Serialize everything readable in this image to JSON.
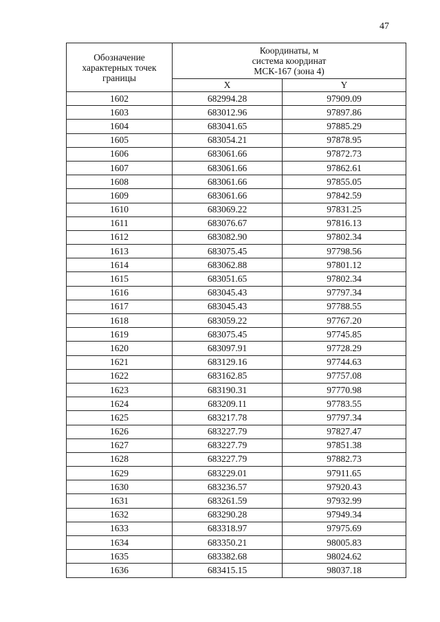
{
  "page_number": "47",
  "table": {
    "header": {
      "point_label": "Обозначение характерных точек границы",
      "coords_label_line1": "Координаты, м",
      "coords_label_line2": "система координат",
      "coords_label_line3": "МСК-167 (зона 4)",
      "x_label": "X",
      "y_label": "Y"
    },
    "rows": [
      [
        "1602",
        "682994.28",
        "97909.09"
      ],
      [
        "1603",
        "683012.96",
        "97897.86"
      ],
      [
        "1604",
        "683041.65",
        "97885.29"
      ],
      [
        "1605",
        "683054.21",
        "97878.95"
      ],
      [
        "1606",
        "683061.66",
        "97872.73"
      ],
      [
        "1607",
        "683061.66",
        "97862.61"
      ],
      [
        "1608",
        "683061.66",
        "97855.05"
      ],
      [
        "1609",
        "683061.66",
        "97842.59"
      ],
      [
        "1610",
        "683069.22",
        "97831.25"
      ],
      [
        "1611",
        "683076.67",
        "97816.13"
      ],
      [
        "1612",
        "683082.90",
        "97802.34"
      ],
      [
        "1613",
        "683075.45",
        "97798.56"
      ],
      [
        "1614",
        "683062.88",
        "97801.12"
      ],
      [
        "1615",
        "683051.65",
        "97802.34"
      ],
      [
        "1616",
        "683045.43",
        "97797.34"
      ],
      [
        "1617",
        "683045.43",
        "97788.55"
      ],
      [
        "1618",
        "683059.22",
        "97767.20"
      ],
      [
        "1619",
        "683075.45",
        "97745.85"
      ],
      [
        "1620",
        "683097.91",
        "97728.29"
      ],
      [
        "1621",
        "683129.16",
        "97744.63"
      ],
      [
        "1622",
        "683162.85",
        "97757.08"
      ],
      [
        "1623",
        "683190.31",
        "97770.98"
      ],
      [
        "1624",
        "683209.11",
        "97783.55"
      ],
      [
        "1625",
        "683217.78",
        "97797.34"
      ],
      [
        "1626",
        "683227.79",
        "97827.47"
      ],
      [
        "1627",
        "683227.79",
        "97851.38"
      ],
      [
        "1628",
        "683227.79",
        "97882.73"
      ],
      [
        "1629",
        "683229.01",
        "97911.65"
      ],
      [
        "1630",
        "683236.57",
        "97920.43"
      ],
      [
        "1631",
        "683261.59",
        "97932.99"
      ],
      [
        "1632",
        "683290.28",
        "97949.34"
      ],
      [
        "1633",
        "683318.97",
        "97975.69"
      ],
      [
        "1634",
        "683350.21",
        "98005.83"
      ],
      [
        "1635",
        "683382.68",
        "98024.62"
      ],
      [
        "1636",
        "683415.15",
        "98037.18"
      ]
    ]
  }
}
